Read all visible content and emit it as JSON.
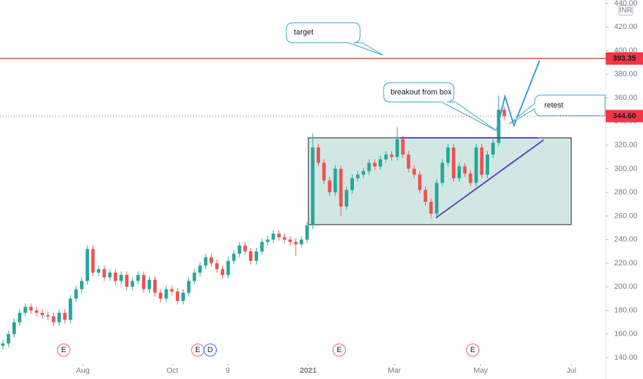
{
  "chart_data": {
    "type": "candlestick",
    "currency": "INR",
    "candles": [
      [
        150,
        155,
        147,
        152
      ],
      [
        152,
        163,
        149,
        160
      ],
      [
        160,
        173,
        157,
        170
      ],
      [
        170,
        181,
        167,
        178
      ],
      [
        178,
        186,
        175,
        183
      ],
      [
        183,
        186,
        177,
        180
      ],
      [
        180,
        183,
        175,
        178
      ],
      [
        178,
        181,
        173,
        176
      ],
      [
        176,
        179,
        172,
        175
      ],
      [
        175,
        178,
        167,
        170
      ],
      [
        170,
        181,
        167,
        178
      ],
      [
        178,
        181,
        169,
        172
      ],
      [
        172,
        193,
        169,
        190
      ],
      [
        190,
        201,
        187,
        198
      ],
      [
        198,
        208,
        195,
        205
      ],
      [
        205,
        235,
        202,
        232
      ],
      [
        232,
        235,
        209,
        212
      ],
      [
        212,
        218,
        209,
        215
      ],
      [
        215,
        218,
        205,
        208
      ],
      [
        208,
        215,
        205,
        212
      ],
      [
        212,
        215,
        202,
        205
      ],
      [
        205,
        213,
        202,
        210
      ],
      [
        210,
        213,
        197,
        200
      ],
      [
        200,
        208,
        197,
        205
      ],
      [
        205,
        213,
        202,
        210
      ],
      [
        210,
        213,
        195,
        198
      ],
      [
        198,
        209,
        195,
        206
      ],
      [
        206,
        209,
        192,
        195
      ],
      [
        195,
        198,
        187,
        190
      ],
      [
        190,
        201,
        187,
        198
      ],
      [
        198,
        201,
        193,
        196
      ],
      [
        196,
        199,
        185,
        188
      ],
      [
        188,
        198,
        185,
        195
      ],
      [
        195,
        208,
        192,
        205
      ],
      [
        205,
        215,
        202,
        212
      ],
      [
        212,
        221,
        209,
        218
      ],
      [
        218,
        228,
        215,
        225
      ],
      [
        225,
        228,
        217,
        220
      ],
      [
        220,
        223,
        212,
        215
      ],
      [
        215,
        218,
        207,
        210
      ],
      [
        210,
        225,
        207,
        222
      ],
      [
        222,
        231,
        219,
        228
      ],
      [
        228,
        238,
        225,
        235
      ],
      [
        235,
        238,
        227,
        230
      ],
      [
        230,
        233,
        219,
        222
      ],
      [
        222,
        233,
        219,
        230
      ],
      [
        230,
        241,
        227,
        238
      ],
      [
        238,
        243,
        235,
        240
      ],
      [
        240,
        248,
        237,
        245
      ],
      [
        245,
        248,
        239,
        242
      ],
      [
        242,
        245,
        237,
        240
      ],
      [
        240,
        243,
        235,
        238
      ],
      [
        238,
        241,
        226,
        236
      ],
      [
        236,
        243,
        233,
        240
      ],
      [
        240,
        255,
        237,
        252
      ],
      [
        252,
        330,
        249,
        318
      ],
      [
        318,
        321,
        302,
        305
      ],
      [
        305,
        308,
        287,
        290
      ],
      [
        290,
        293,
        277,
        280
      ],
      [
        280,
        303,
        277,
        300
      ],
      [
        300,
        303,
        260,
        268
      ],
      [
        268,
        285,
        265,
        282
      ],
      [
        282,
        295,
        279,
        292
      ],
      [
        292,
        298,
        289,
        295
      ],
      [
        295,
        301,
        292,
        298
      ],
      [
        298,
        308,
        295,
        305
      ],
      [
        305,
        308,
        299,
        302
      ],
      [
        302,
        311,
        299,
        308
      ],
      [
        308,
        315,
        305,
        312
      ],
      [
        312,
        315,
        307,
        310
      ],
      [
        310,
        335,
        307,
        325
      ],
      [
        325,
        328,
        309,
        312
      ],
      [
        312,
        315,
        297,
        300
      ],
      [
        300,
        303,
        292,
        295
      ],
      [
        295,
        298,
        279,
        282
      ],
      [
        282,
        285,
        269,
        272
      ],
      [
        272,
        275,
        258,
        262
      ],
      [
        262,
        291,
        259,
        288
      ],
      [
        288,
        308,
        285,
        305
      ],
      [
        305,
        321,
        302,
        318
      ],
      [
        318,
        321,
        289,
        292
      ],
      [
        292,
        305,
        289,
        302
      ],
      [
        302,
        305,
        293,
        296
      ],
      [
        296,
        299,
        285,
        288
      ],
      [
        288,
        321,
        285,
        318
      ],
      [
        318,
        321,
        292,
        295
      ],
      [
        295,
        315,
        292,
        312
      ],
      [
        312,
        325,
        309,
        322
      ],
      [
        322,
        362,
        319,
        350
      ],
      [
        350,
        353,
        341,
        344.6
      ]
    ],
    "up_color": "#26a69a",
    "down_color": "#ef5350",
    "xlim": [
      -0.5,
      107
    ],
    "xticks": [
      {
        "value": 14.2,
        "label": "Aug"
      },
      {
        "value": 30.1,
        "label": "Oct"
      },
      {
        "value": 39.9,
        "label": "9"
      },
      {
        "value": 54.2,
        "label": "2021"
      },
      {
        "value": 69.5,
        "label": "Mar"
      },
      {
        "value": 84.8,
        "label": "May"
      },
      {
        "value": 100.9,
        "label": "Jul"
      }
    ],
    "ylim": [
      137.1,
      442.9
    ],
    "yticks": [
      {
        "value": 140,
        "label": "140.00"
      },
      {
        "value": 160,
        "label": "160.00"
      },
      {
        "value": 180,
        "label": "180.00"
      },
      {
        "value": 200,
        "label": "200.00"
      },
      {
        "value": 220,
        "label": "220.00"
      },
      {
        "value": 240,
        "label": "240.00"
      },
      {
        "value": 260,
        "label": "260.00"
      },
      {
        "value": 280,
        "label": "280.00"
      },
      {
        "value": 300,
        "label": "300.00"
      },
      {
        "value": 320,
        "label": "320.00"
      },
      {
        "value": 340,
        "label": "340.00"
      },
      {
        "value": 360,
        "label": "360.00"
      },
      {
        "value": 380,
        "label": "380.00"
      },
      {
        "value": 400,
        "label": "400.00"
      },
      {
        "value": 420,
        "label": "420.00"
      },
      {
        "value": 440,
        "label": "440.00"
      }
    ],
    "events": [
      {
        "value": 10.8,
        "label": "E"
      },
      {
        "value": 34.6,
        "label": "E"
      },
      {
        "value": 36.8,
        "label": "D"
      },
      {
        "value": 59.7,
        "label": "E"
      },
      {
        "value": 83.4,
        "label": "E"
      }
    ],
    "target_line": {
      "value": 393.35,
      "label": "393.35",
      "color": "#f23645"
    },
    "last_price": {
      "value": 344.6,
      "label": "344.60",
      "color": "#f23645"
    },
    "annotations": [
      "target",
      "breakout from box",
      "retest"
    ]
  }
}
